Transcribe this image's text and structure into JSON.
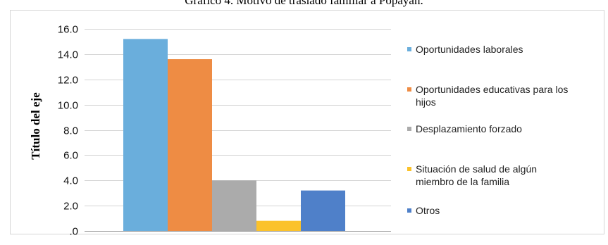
{
  "chart_data": {
    "type": "bar",
    "title": "Gráfico 4. Motivo de traslado familiar a Popayán.",
    "xlabel": "",
    "ylabel": "Título del eje",
    "ylim": [
      0,
      16
    ],
    "y_ticks": [
      ".0",
      "2.0",
      "4.0",
      "6.0",
      "8.0",
      "10.0",
      "12.0",
      "14.0",
      "16.0"
    ],
    "grid": true,
    "legend_position": "right",
    "series": [
      {
        "name": "Oportunidades laborales",
        "value": 15.2,
        "color": "#6AAEDC"
      },
      {
        "name": "Oportunidades educativas para los hijos",
        "value": 13.6,
        "color": "#EE8C44"
      },
      {
        "name": "Desplazamiento forzado",
        "value": 4.0,
        "color": "#ABABAB"
      },
      {
        "name": "Situación de salud de algún miembro de la familia",
        "value": 0.8,
        "color": "#FBC22A"
      },
      {
        "name": "Otros",
        "value": 3.2,
        "color": "#4F80C9"
      }
    ],
    "legend_lines": [
      [
        "Oportunidades laborales"
      ],
      [
        "Oportunidades educativas para los",
        "hijos"
      ],
      [
        "Desplazamiento forzado"
      ],
      [
        "Situación de salud de algún",
        "miembro de la familia"
      ],
      [
        "Otros"
      ]
    ]
  }
}
